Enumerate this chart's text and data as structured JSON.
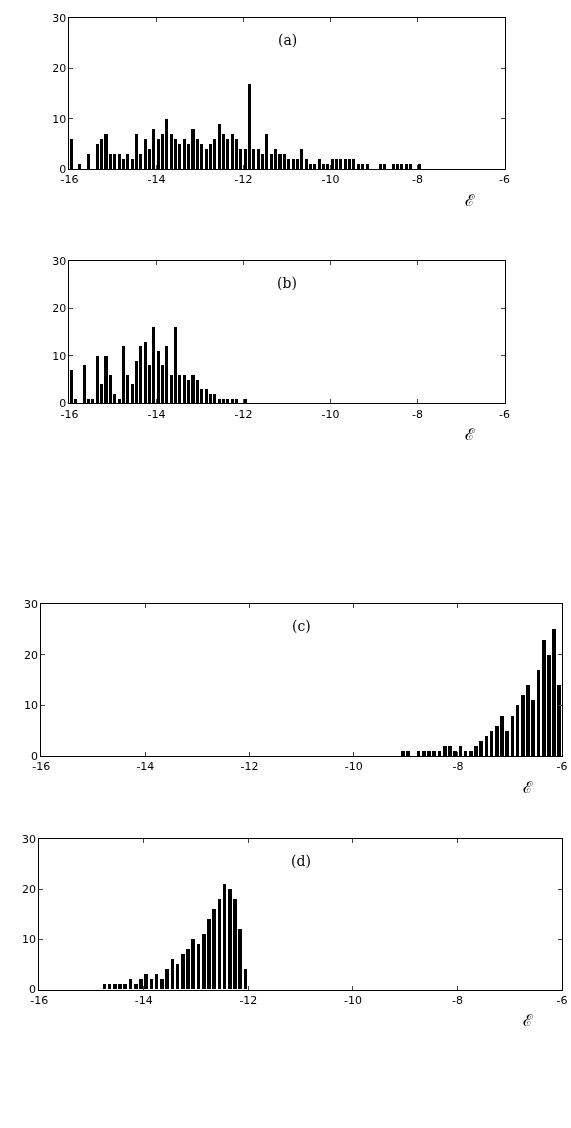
{
  "chart_data": [
    {
      "type": "histogram",
      "annotations": [
        "(a)"
      ],
      "xlabel": "ℰ",
      "color": "#000000",
      "xlim": [
        -16,
        -6
      ],
      "ylim": [
        0,
        30
      ],
      "xticks": [
        -16,
        -14,
        -12,
        -10,
        -8,
        -6
      ],
      "yticks": [
        0,
        10,
        20,
        30
      ],
      "grid": false,
      "bins": [
        -16,
        -15.9,
        -15.8,
        -15.7,
        -15.6,
        -15.5,
        -15.4,
        -15.3,
        -15.2,
        -15.1,
        -15,
        -14.9,
        -14.8,
        -14.7,
        -14.6,
        -14.5,
        -14.4,
        -14.3,
        -14.2,
        -14.1,
        -14,
        -13.9,
        -13.8,
        -13.7,
        -13.6,
        -13.5,
        -13.4,
        -13.3,
        -13.2,
        -13.1,
        -13,
        -12.9,
        -12.8,
        -12.7,
        -12.6,
        -12.5,
        -12.4,
        -12.3,
        -12.2,
        -12.1,
        -12,
        -11.9,
        -11.8,
        -11.7,
        -11.6,
        -11.5,
        -11.4,
        -11.3,
        -11.2,
        -11.1,
        -11,
        -10.9,
        -10.8,
        -10.7,
        -10.6,
        -10.5,
        -10.4,
        -10.3,
        -10.2,
        -10.1,
        -10,
        -9.9,
        -9.8,
        -9.7,
        -9.6,
        -9.5,
        -9.4,
        -9.3,
        -9.2,
        -9.1,
        -9,
        -8.9,
        -8.8,
        -8.7,
        -8.6,
        -8.5,
        -8.4,
        -8.3,
        -8.2,
        -8.1,
        -8,
        -7.9,
        -7.8,
        -7.7,
        -7.6,
        -7.5,
        -7.4,
        -7.3,
        -7.2,
        -7.1,
        -7,
        -6.9,
        -6.8,
        -6.7,
        -6.6,
        -6.5,
        -6.4,
        -6.3,
        -6.2,
        -6.1,
        -6
      ],
      "values": [
        6,
        0,
        1,
        0,
        3,
        0,
        5,
        6,
        7,
        3,
        3,
        3,
        2,
        3,
        2,
        7,
        3,
        6,
        4,
        8,
        6,
        7,
        10,
        7,
        6,
        5,
        6,
        5,
        8,
        6,
        5,
        4,
        5,
        6,
        9,
        7,
        6,
        7,
        6,
        4,
        4,
        17,
        4,
        4,
        3,
        7,
        3,
        4,
        3,
        3,
        2,
        2,
        2,
        4,
        2,
        1,
        1,
        2,
        1,
        1,
        2,
        2,
        2,
        2,
        2,
        2,
        1,
        1,
        1,
        0,
        0,
        1,
        1,
        0,
        1,
        1,
        1,
        1,
        1,
        0,
        1,
        0,
        0,
        0,
        0,
        0,
        0,
        0,
        0,
        0,
        0,
        0,
        0,
        0,
        0,
        0,
        0,
        0,
        0,
        0
      ]
    },
    {
      "type": "histogram",
      "annotations": [
        "(b)"
      ],
      "xlabel": "ℰ",
      "color": "#000000",
      "xlim": [
        -16,
        -6
      ],
      "ylim": [
        0,
        30
      ],
      "xticks": [
        -16,
        -14,
        -12,
        -10,
        -8,
        -6
      ],
      "yticks": [
        0,
        10,
        20,
        30
      ],
      "grid": false,
      "bins": [
        -16,
        -15.9,
        -15.8,
        -15.7,
        -15.6,
        -15.5,
        -15.4,
        -15.3,
        -15.2,
        -15.1,
        -15,
        -14.9,
        -14.8,
        -14.7,
        -14.6,
        -14.5,
        -14.4,
        -14.3,
        -14.2,
        -14.1,
        -14,
        -13.9,
        -13.8,
        -13.7,
        -13.6,
        -13.5,
        -13.4,
        -13.3,
        -13.2,
        -13.1,
        -13,
        -12.9,
        -12.8,
        -12.7,
        -12.6,
        -12.5,
        -12.4,
        -12.3,
        -12.2,
        -12.1,
        -12,
        -11.9,
        -11.8,
        -11.7,
        -11.6,
        -11.5,
        -11.4,
        -11.3,
        -11.2,
        -11.1,
        -11,
        -10.9,
        -10.8,
        -10.7,
        -10.6,
        -10.5,
        -10.4,
        -10.3,
        -10.2,
        -10.1,
        -10,
        -9.9,
        -9.8,
        -9.7,
        -9.6,
        -9.5,
        -9.4,
        -9.3,
        -9.2,
        -9.1,
        -9,
        -8.9,
        -8.8,
        -8.7,
        -8.6,
        -8.5,
        -8.4,
        -8.3,
        -8.2,
        -8.1,
        -8,
        -7.9,
        -7.8,
        -7.7,
        -7.6,
        -7.5,
        -7.4,
        -7.3,
        -7.2,
        -7.1,
        -7,
        -6.9,
        -6.8,
        -6.7,
        -6.6,
        -6.5,
        -6.4,
        -6.3,
        -6.2,
        -6.1,
        -6
      ],
      "values": [
        7,
        1,
        0,
        8,
        1,
        1,
        10,
        4,
        10,
        6,
        2,
        1,
        12,
        6,
        4,
        9,
        12,
        13,
        8,
        16,
        11,
        8,
        12,
        6,
        16,
        6,
        6,
        5,
        6,
        5,
        3,
        3,
        2,
        2,
        1,
        1,
        1,
        1,
        1,
        0,
        1,
        0,
        0,
        0,
        0,
        0,
        0,
        0,
        0,
        0,
        0,
        0,
        0,
        0,
        0,
        0,
        0,
        0,
        0,
        0,
        0,
        0,
        0,
        0,
        0,
        0,
        0,
        0,
        0,
        0,
        0,
        0,
        0,
        0,
        0,
        0,
        0,
        0,
        0,
        0,
        0,
        0,
        0,
        0,
        0,
        0,
        0,
        0,
        0,
        0,
        0,
        0,
        0,
        0,
        0,
        0,
        0,
        0,
        0,
        0
      ]
    },
    {
      "type": "histogram",
      "annotations": [
        "(c)"
      ],
      "xlabel": "ℰ",
      "color": "#000000",
      "xlim": [
        -16,
        -6
      ],
      "ylim": [
        0,
        30
      ],
      "xticks": [
        -16,
        -14,
        -12,
        -10,
        -8,
        -6
      ],
      "yticks": [
        0,
        10,
        20,
        30
      ],
      "grid": false,
      "bins": [
        -16,
        -15.9,
        -15.8,
        -15.7,
        -15.6,
        -15.5,
        -15.4,
        -15.3,
        -15.2,
        -15.1,
        -15,
        -14.9,
        -14.8,
        -14.7,
        -14.6,
        -14.5,
        -14.4,
        -14.3,
        -14.2,
        -14.1,
        -14,
        -13.9,
        -13.8,
        -13.7,
        -13.6,
        -13.5,
        -13.4,
        -13.3,
        -13.2,
        -13.1,
        -13,
        -12.9,
        -12.8,
        -12.7,
        -12.6,
        -12.5,
        -12.4,
        -12.3,
        -12.2,
        -12.1,
        -12,
        -11.9,
        -11.8,
        -11.7,
        -11.6,
        -11.5,
        -11.4,
        -11.3,
        -11.2,
        -11.1,
        -11,
        -10.9,
        -10.8,
        -10.7,
        -10.6,
        -10.5,
        -10.4,
        -10.3,
        -10.2,
        -10.1,
        -10,
        -9.9,
        -9.8,
        -9.7,
        -9.6,
        -9.5,
        -9.4,
        -9.3,
        -9.2,
        -9.1,
        -9,
        -8.9,
        -8.8,
        -8.7,
        -8.6,
        -8.5,
        -8.4,
        -8.3,
        -8.2,
        -8.1,
        -8,
        -7.9,
        -7.8,
        -7.7,
        -7.6,
        -7.5,
        -7.4,
        -7.3,
        -7.2,
        -7.1,
        -7,
        -6.9,
        -6.8,
        -6.7,
        -6.6,
        -6.5,
        -6.4,
        -6.3,
        -6.2,
        -6.1,
        -6
      ],
      "values": [
        0,
        0,
        0,
        0,
        0,
        0,
        0,
        0,
        0,
        0,
        0,
        0,
        0,
        0,
        0,
        0,
        0,
        0,
        0,
        0,
        0,
        0,
        0,
        0,
        0,
        0,
        0,
        0,
        0,
        0,
        0,
        0,
        0,
        0,
        0,
        0,
        0,
        0,
        0,
        0,
        0,
        0,
        0,
        0,
        0,
        0,
        0,
        0,
        0,
        0,
        0,
        0,
        0,
        0,
        0,
        0,
        0,
        0,
        0,
        0,
        0,
        0,
        0,
        0,
        0,
        0,
        0,
        0,
        0,
        1,
        1,
        0,
        1,
        1,
        1,
        1,
        1,
        2,
        2,
        1,
        2,
        1,
        1,
        2,
        3,
        4,
        5,
        6,
        8,
        5,
        8,
        10,
        12,
        14,
        11,
        17,
        23,
        20,
        25,
        14
      ]
    },
    {
      "type": "histogram",
      "annotations": [
        "(d)"
      ],
      "xlabel": "ℰ",
      "color": "#000000",
      "xlim": [
        -16,
        -6
      ],
      "ylim": [
        0,
        30
      ],
      "xticks": [
        -16,
        -14,
        -12,
        -10,
        -8,
        -6
      ],
      "yticks": [
        0,
        10,
        20,
        30
      ],
      "grid": false,
      "bins": [
        -16,
        -15.9,
        -15.8,
        -15.7,
        -15.6,
        -15.5,
        -15.4,
        -15.3,
        -15.2,
        -15.1,
        -15,
        -14.9,
        -14.8,
        -14.7,
        -14.6,
        -14.5,
        -14.4,
        -14.3,
        -14.2,
        -14.1,
        -14,
        -13.9,
        -13.8,
        -13.7,
        -13.6,
        -13.5,
        -13.4,
        -13.3,
        -13.2,
        -13.1,
        -13,
        -12.9,
        -12.8,
        -12.7,
        -12.6,
        -12.5,
        -12.4,
        -12.3,
        -12.2,
        -12.1,
        -12,
        -11.9,
        -11.8,
        -11.7,
        -11.6,
        -11.5,
        -11.4,
        -11.3,
        -11.2,
        -11.1,
        -11,
        -10.9,
        -10.8,
        -10.7,
        -10.6,
        -10.5,
        -10.4,
        -10.3,
        -10.2,
        -10.1,
        -10,
        -9.9,
        -9.8,
        -9.7,
        -9.6,
        -9.5,
        -9.4,
        -9.3,
        -9.2,
        -9.1,
        -9,
        -8.9,
        -8.8,
        -8.7,
        -8.6,
        -8.5,
        -8.4,
        -8.3,
        -8.2,
        -8.1,
        -8,
        -7.9,
        -7.8,
        -7.7,
        -7.6,
        -7.5,
        -7.4,
        -7.3,
        -7.2,
        -7.1,
        -7,
        -6.9,
        -6.8,
        -6.7,
        -6.6,
        -6.5,
        -6.4,
        -6.3,
        -6.2,
        -6.1,
        -6
      ],
      "values": [
        0,
        0,
        0,
        0,
        0,
        0,
        0,
        0,
        0,
        0,
        0,
        0,
        1,
        1,
        1,
        1,
        1,
        2,
        1,
        2,
        3,
        2,
        3,
        2,
        4,
        6,
        5,
        7,
        8,
        10,
        9,
        11,
        14,
        16,
        18,
        21,
        20,
        18,
        12,
        4,
        0,
        0,
        0,
        0,
        0,
        0,
        0,
        0,
        0,
        0,
        0,
        0,
        0,
        0,
        0,
        0,
        0,
        0,
        0,
        0,
        0,
        0,
        0,
        0,
        0,
        0,
        0,
        0,
        0,
        0,
        0,
        0,
        0,
        0,
        0,
        0,
        0,
        0,
        0,
        0,
        0,
        0,
        0,
        0,
        0,
        0,
        0,
        0,
        0,
        0,
        0,
        0,
        0,
        0,
        0,
        0,
        0,
        0,
        0,
        0
      ]
    }
  ]
}
